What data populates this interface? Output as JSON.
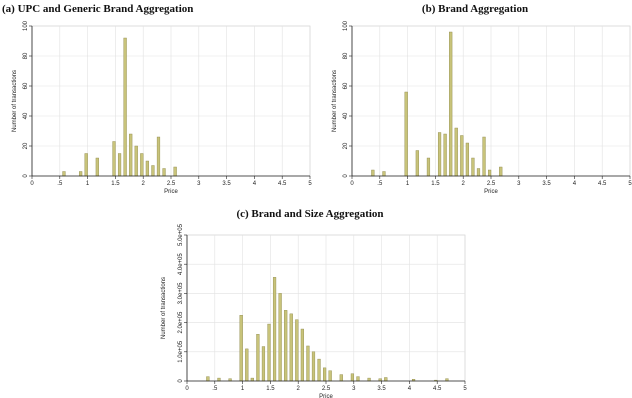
{
  "chart_data": [
    {
      "type": "bar",
      "title": "(a) UPC and Generic Brand Aggregation",
      "xlabel": "Price",
      "ylabel": "Number of transactions",
      "xlim": [
        0,
        5
      ],
      "ylim": [
        0,
        100
      ],
      "xticks": [
        "0",
        ".5",
        "1",
        "1.5",
        "2",
        "2.5",
        "3",
        "3.5",
        "4",
        "4.5",
        "5"
      ],
      "xtick_values": [
        0,
        0.5,
        1,
        1.5,
        2,
        2.5,
        3,
        3.5,
        4,
        4.5,
        5
      ],
      "yticks": [
        "0",
        "20",
        "40",
        "60",
        "80",
        "100"
      ],
      "ytick_values": [
        0,
        20,
        40,
        60,
        80,
        100
      ],
      "bin_width": 0.05,
      "grid": true,
      "bar_color": "#c8c37a",
      "bar_edge": "#8a8545",
      "bins": [
        {
          "x": 0.55,
          "y": 3
        },
        {
          "x": 0.85,
          "y": 3
        },
        {
          "x": 0.95,
          "y": 15
        },
        {
          "x": 1.15,
          "y": 12
        },
        {
          "x": 1.45,
          "y": 23
        },
        {
          "x": 1.55,
          "y": 15
        },
        {
          "x": 1.65,
          "y": 92
        },
        {
          "x": 1.75,
          "y": 28
        },
        {
          "x": 1.85,
          "y": 20
        },
        {
          "x": 1.95,
          "y": 15
        },
        {
          "x": 2.05,
          "y": 10
        },
        {
          "x": 2.15,
          "y": 7
        },
        {
          "x": 2.25,
          "y": 26
        },
        {
          "x": 2.35,
          "y": 5
        },
        {
          "x": 2.55,
          "y": 6
        }
      ]
    },
    {
      "type": "bar",
      "title": "(b) Brand Aggregation",
      "xlabel": "Price",
      "ylabel": "Number of transactions",
      "xlim": [
        0,
        5
      ],
      "ylim": [
        0,
        100
      ],
      "xticks": [
        "0",
        ".5",
        "1",
        "1.5",
        "2",
        "2.5",
        "3",
        "3.5",
        "4",
        "4.5",
        "5"
      ],
      "xtick_values": [
        0,
        0.5,
        1,
        1.5,
        2,
        2.5,
        3,
        3.5,
        4,
        4.5,
        5
      ],
      "yticks": [
        "0",
        "20",
        "40",
        "60",
        "80",
        "100"
      ],
      "ytick_values": [
        0,
        20,
        40,
        60,
        80,
        100
      ],
      "bin_width": 0.05,
      "grid": true,
      "bar_color": "#c8c37a",
      "bar_edge": "#8a8545",
      "bins": [
        {
          "x": 0.35,
          "y": 4
        },
        {
          "x": 0.55,
          "y": 3
        },
        {
          "x": 0.95,
          "y": 56
        },
        {
          "x": 1.15,
          "y": 17
        },
        {
          "x": 1.35,
          "y": 12
        },
        {
          "x": 1.55,
          "y": 29
        },
        {
          "x": 1.65,
          "y": 28
        },
        {
          "x": 1.75,
          "y": 96
        },
        {
          "x": 1.85,
          "y": 32
        },
        {
          "x": 1.95,
          "y": 27
        },
        {
          "x": 2.05,
          "y": 22
        },
        {
          "x": 2.15,
          "y": 12
        },
        {
          "x": 2.25,
          "y": 5
        },
        {
          "x": 2.35,
          "y": 26
        },
        {
          "x": 2.45,
          "y": 4
        },
        {
          "x": 2.65,
          "y": 6
        }
      ]
    },
    {
      "type": "bar",
      "title": "(c) Brand and Size Aggregation",
      "xlabel": "Price",
      "ylabel": "Number of transactions",
      "xlim": [
        0,
        5
      ],
      "ylim": [
        0,
        500000
      ],
      "xticks": [
        "0",
        ".5",
        "1",
        "1.5",
        "2",
        "2.5",
        "3",
        "3.5",
        "4",
        "4.5",
        "5"
      ],
      "xtick_values": [
        0,
        0.5,
        1,
        1.5,
        2,
        2.5,
        3,
        3.5,
        4,
        4.5,
        5
      ],
      "yticks": [
        "0",
        "1.0e+05",
        "2.0e+05",
        "3.0e+05",
        "4.0e+05",
        "5.0e+05"
      ],
      "ytick_values": [
        0,
        100000,
        200000,
        300000,
        400000,
        500000
      ],
      "bin_width": 0.05,
      "grid": true,
      "bar_color": "#c8c37a",
      "bar_edge": "#8a8545",
      "bins": [
        {
          "x": 0.35,
          "y": 15000
        },
        {
          "x": 0.55,
          "y": 10000
        },
        {
          "x": 0.75,
          "y": 8000
        },
        {
          "x": 0.95,
          "y": 225000
        },
        {
          "x": 1.05,
          "y": 110000
        },
        {
          "x": 1.15,
          "y": 10000
        },
        {
          "x": 1.25,
          "y": 160000
        },
        {
          "x": 1.35,
          "y": 118000
        },
        {
          "x": 1.45,
          "y": 195000
        },
        {
          "x": 1.55,
          "y": 355000
        },
        {
          "x": 1.65,
          "y": 300000
        },
        {
          "x": 1.75,
          "y": 242000
        },
        {
          "x": 1.85,
          "y": 230000
        },
        {
          "x": 1.95,
          "y": 210000
        },
        {
          "x": 2.05,
          "y": 178000
        },
        {
          "x": 2.15,
          "y": 120000
        },
        {
          "x": 2.25,
          "y": 100000
        },
        {
          "x": 2.35,
          "y": 75000
        },
        {
          "x": 2.45,
          "y": 45000
        },
        {
          "x": 2.55,
          "y": 35000
        },
        {
          "x": 2.75,
          "y": 22000
        },
        {
          "x": 2.95,
          "y": 25000
        },
        {
          "x": 3.05,
          "y": 15000
        },
        {
          "x": 3.25,
          "y": 10000
        },
        {
          "x": 3.45,
          "y": 8000
        },
        {
          "x": 3.55,
          "y": 12000
        },
        {
          "x": 4.05,
          "y": 6000
        },
        {
          "x": 4.45,
          "y": 3000
        },
        {
          "x": 4.65,
          "y": 8000
        }
      ]
    }
  ]
}
